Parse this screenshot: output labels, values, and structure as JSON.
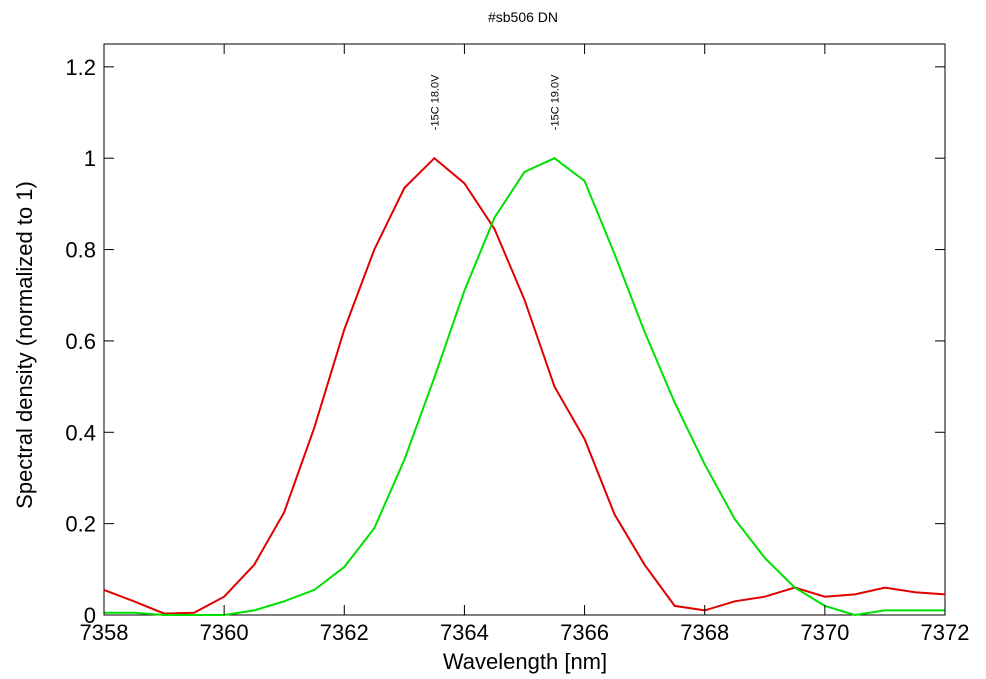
{
  "chart_data": {
    "type": "line",
    "title": "#sb506 DN",
    "xlabel": "Wavelength [nm]",
    "ylabel": "Spectral density (normalized to 1)",
    "xlim": [
      7358,
      7372
    ],
    "ylim": [
      0,
      1.25
    ],
    "x_ticks": [
      7358,
      7360,
      7362,
      7364,
      7366,
      7368,
      7370,
      7372
    ],
    "y_ticks": [
      0,
      0.2,
      0.4,
      0.6,
      0.8,
      1,
      1.2
    ],
    "x_tick_labels": [
      "7358",
      "7360",
      "7362",
      "7364",
      "7366",
      "7368",
      "7370",
      "7372"
    ],
    "y_tick_labels": [
      "0",
      "0.2",
      "0.4",
      "0.6",
      "0.8",
      "1",
      "1.2"
    ],
    "grid": false,
    "series": [
      {
        "name": "-15C 18.0V",
        "color": "#e00000",
        "x": [
          7358,
          7358.5,
          7359,
          7359.5,
          7360,
          7360.5,
          7361,
          7361.5,
          7362,
          7362.5,
          7363,
          7363.5,
          7364,
          7364.5,
          7365,
          7365.5,
          7366,
          7366.5,
          7367,
          7367.5,
          7368,
          7368.5,
          7369,
          7369.5,
          7370,
          7370.5,
          7371,
          7371.5,
          7372
        ],
        "y": [
          0.055,
          0.03,
          0.003,
          0.005,
          0.04,
          0.11,
          0.225,
          0.41,
          0.625,
          0.8,
          0.935,
          1.0,
          0.945,
          0.845,
          0.69,
          0.5,
          0.385,
          0.22,
          0.11,
          0.02,
          0.01,
          0.03,
          0.04,
          0.06,
          0.04,
          0.045,
          0.06,
          0.05,
          0.045
        ]
      },
      {
        "name": "-15C 19.0V",
        "color": "#00e000",
        "x": [
          7358,
          7358.5,
          7359,
          7359.5,
          7360,
          7360.5,
          7361,
          7361.5,
          7362,
          7362.5,
          7363,
          7363.5,
          7364,
          7364.5,
          7365,
          7365.5,
          7366,
          7366.5,
          7367,
          7367.5,
          7368,
          7368.5,
          7369,
          7369.5,
          7370,
          7370.5,
          7371,
          7371.5,
          7372
        ],
        "y": [
          0.005,
          0.005,
          0.0,
          0.0,
          0.0,
          0.01,
          0.03,
          0.055,
          0.105,
          0.19,
          0.34,
          0.52,
          0.71,
          0.87,
          0.97,
          1.0,
          0.95,
          0.79,
          0.62,
          0.465,
          0.33,
          0.21,
          0.125,
          0.06,
          0.02,
          0.0,
          0.01,
          0.01,
          0.01
        ]
      }
    ],
    "annotations": [
      {
        "text": "-15C 18.0V",
        "x": 7363.5,
        "y": 1.0
      },
      {
        "text": "-15C 19.0V",
        "x": 7365.5,
        "y": 1.0
      }
    ]
  }
}
